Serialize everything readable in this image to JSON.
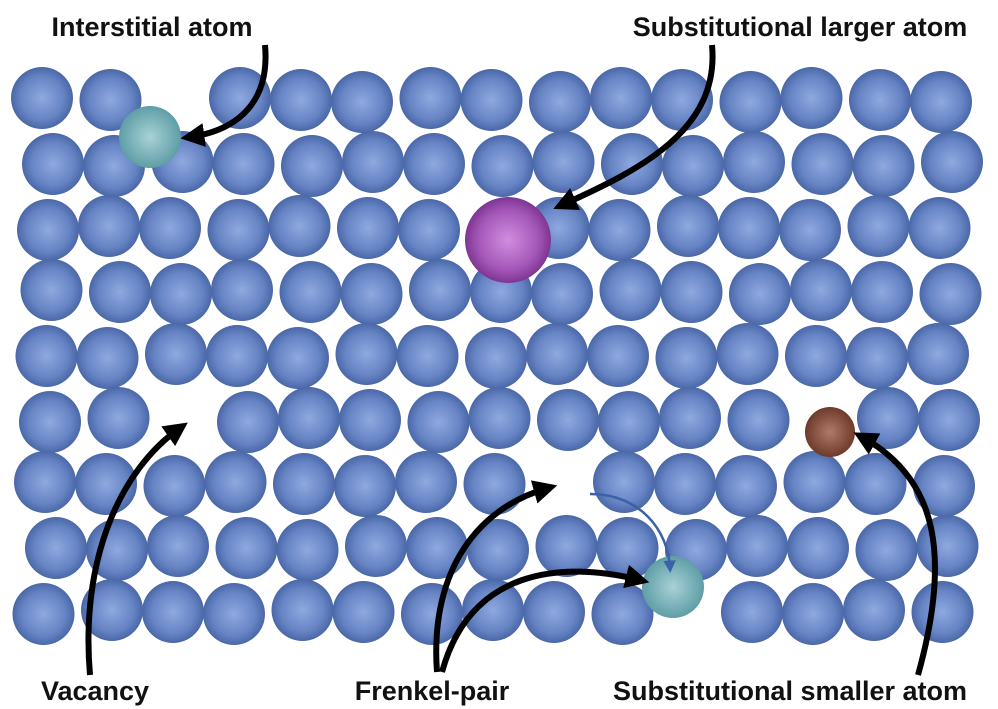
{
  "labels": {
    "interstitial": "Interstitial atom",
    "substitutional_larger": "Substitutional larger atom",
    "vacancy": "Vacancy",
    "frenkel_pair": "Frenkel-pair",
    "substitutional_smaller": "Substitutional smaller atom"
  }
}
